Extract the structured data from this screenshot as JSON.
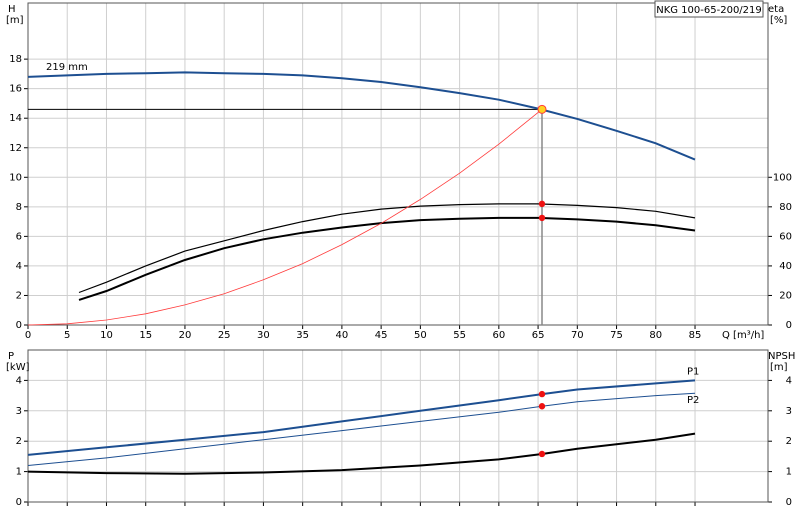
{
  "chart_data": [
    {
      "type": "line",
      "title": "NKG 100-65-200/219",
      "y_label": "H",
      "y_unit": "[m]",
      "y2_label": "eta",
      "y2_unit": "[%]",
      "x_label": "Q [m³/h]",
      "xlim": [
        0,
        94.3
      ],
      "xticks": [
        0,
        5,
        10,
        15,
        20,
        25,
        30,
        35,
        40,
        45,
        50,
        55,
        60,
        65,
        70,
        75,
        80,
        85
      ],
      "ylim": [
        0,
        21.8
      ],
      "yticks": [
        0,
        2,
        4,
        6,
        8,
        10,
        12,
        14,
        16,
        18
      ],
      "y2lim": [
        0,
        218
      ],
      "y2ticks": [
        0,
        20,
        40,
        60,
        80,
        100
      ],
      "grid": true,
      "series": [
        {
          "name": "219 mm",
          "color": "#1d4f91",
          "width": 2,
          "x": [
            0,
            5,
            10,
            15,
            20,
            25,
            30,
            35,
            40,
            45,
            50,
            55,
            60,
            65,
            70,
            75,
            80,
            85
          ],
          "values": [
            16.8,
            16.9,
            17.0,
            17.05,
            17.1,
            17.05,
            17.0,
            16.9,
            16.7,
            16.45,
            16.1,
            15.7,
            15.25,
            14.65,
            13.95,
            13.15,
            12.3,
            11.2
          ]
        },
        {
          "color": "#000000",
          "width": 1.2,
          "axis": "y2",
          "x": [
            6.5,
            10,
            15,
            20,
            25,
            30,
            35,
            40,
            45,
            50,
            55,
            60,
            65,
            70,
            75,
            80,
            85
          ],
          "values": [
            22,
            29,
            40,
            50,
            57,
            64,
            70,
            75,
            78.5,
            80.5,
            81.5,
            82,
            82,
            81,
            79.5,
            77,
            72.5
          ]
        },
        {
          "color": "#000000",
          "width": 2,
          "axis": "y2",
          "x": [
            6.5,
            10,
            15,
            20,
            25,
            30,
            35,
            40,
            45,
            50,
            55,
            60,
            65,
            70,
            75,
            80,
            85
          ],
          "values": [
            17,
            23,
            34,
            44,
            52,
            58,
            62.5,
            66,
            69,
            71,
            72,
            72.5,
            72.5,
            71.5,
            70,
            67.5,
            64
          ]
        },
        {
          "color": "#ff3b3b",
          "width": 0.8,
          "x": [
            0,
            5,
            10,
            15,
            20,
            25,
            30,
            35,
            40,
            45,
            50,
            55,
            60,
            65.5
          ],
          "values": [
            0,
            0.08,
            0.34,
            0.76,
            1.36,
            2.12,
            3.06,
            4.16,
            5.44,
            6.88,
            8.5,
            10.28,
            12.24,
            14.6
          ]
        }
      ],
      "duty_point": {
        "x": 65.5,
        "y": 14.6,
        "color": "#ffd21f"
      },
      "points": [
        {
          "x": 65.5,
          "y": 82,
          "axis": "y2",
          "color": "#ee1111"
        },
        {
          "x": 65.5,
          "y": 72.5,
          "axis": "y2",
          "color": "#ee1111"
        }
      ]
    },
    {
      "type": "line",
      "y_label": "P",
      "y_unit": "[kW]",
      "y2_label": "NPSH",
      "y2_unit": "[m]",
      "xlim": [
        0,
        94.3
      ],
      "ylim": [
        0,
        5
      ],
      "yticks": [
        0,
        1,
        2,
        3,
        4
      ],
      "y2lim": [
        0,
        5
      ],
      "y2ticks": [
        0,
        1,
        2,
        3,
        4
      ],
      "grid": true,
      "series": [
        {
          "name": "P1",
          "color": "#1d4f91",
          "width": 2,
          "x": [
            0,
            10,
            20,
            30,
            40,
            50,
            60,
            65.5,
            70,
            80,
            85
          ],
          "values": [
            1.55,
            1.8,
            2.05,
            2.3,
            2.65,
            3.0,
            3.35,
            3.55,
            3.7,
            3.9,
            4.0
          ]
        },
        {
          "name": "P2",
          "color": "#1d4f91",
          "width": 1,
          "x": [
            0,
            10,
            20,
            30,
            40,
            50,
            60,
            65.5,
            70,
            80,
            85
          ],
          "values": [
            1.2,
            1.45,
            1.75,
            2.05,
            2.35,
            2.65,
            2.95,
            3.15,
            3.3,
            3.5,
            3.58
          ]
        },
        {
          "color": "#000000",
          "width": 2,
          "axis": "y2",
          "x": [
            0,
            10,
            20,
            30,
            40,
            50,
            60,
            65.5,
            70,
            80,
            85
          ],
          "values": [
            1.0,
            0.95,
            0.93,
            0.97,
            1.05,
            1.2,
            1.4,
            1.58,
            1.75,
            2.05,
            2.25
          ]
        }
      ],
      "points": [
        {
          "x": 65.5,
          "y": 3.55,
          "color": "#ee1111"
        },
        {
          "x": 65.5,
          "y": 3.15,
          "color": "#ee1111"
        },
        {
          "x": 65.5,
          "y": 1.58,
          "axis": "y2",
          "color": "#ee1111"
        }
      ]
    }
  ]
}
